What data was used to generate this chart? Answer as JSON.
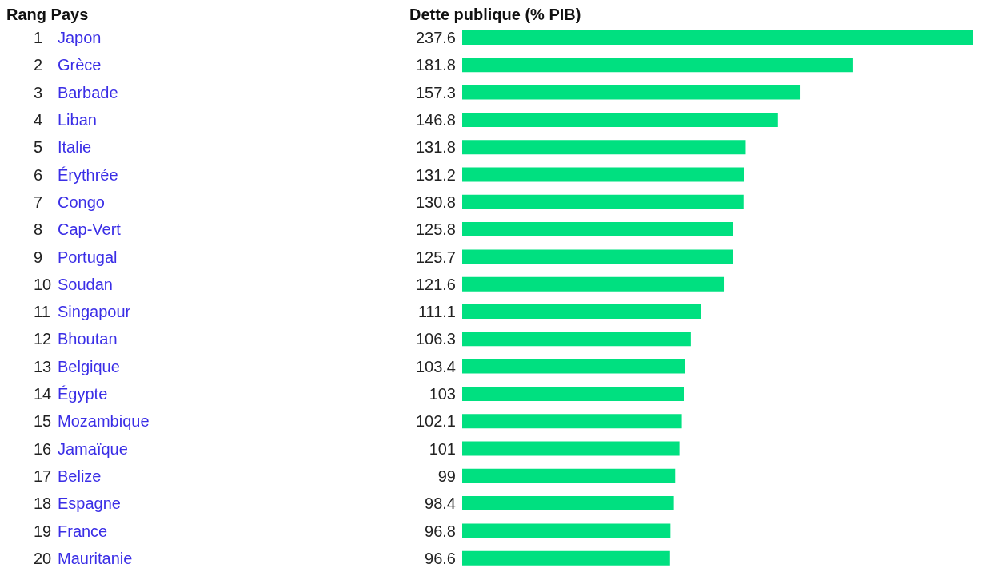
{
  "chart_data": {
    "type": "bar",
    "orientation": "horizontal",
    "ylabel": "Rang Pays",
    "xlabel": "Dette publique (% PIB)",
    "categories": [
      "1 Japon",
      "2 Grèce",
      "3 Barbade",
      "4 Liban",
      "5 Italie",
      "6 Érythrée",
      "7 Congo",
      "8 Cap-Vert",
      "9 Portugal",
      "10 Soudan",
      "11 Singapour",
      "12 Bhoutan",
      "13 Belgique",
      "14 Égypte",
      "15 Mozambique",
      "16 Jamaïque",
      "17 Belize",
      "18 Espagne",
      "19 France",
      "20 Mauritanie"
    ],
    "values": [
      237.6,
      181.8,
      157.3,
      146.8,
      131.8,
      131.2,
      130.8,
      125.8,
      125.7,
      121.6,
      111.1,
      106.3,
      103.4,
      103,
      102.1,
      101,
      99,
      98.4,
      96.8,
      96.6
    ],
    "color": "#00e080",
    "data_labels": true
  }
}
